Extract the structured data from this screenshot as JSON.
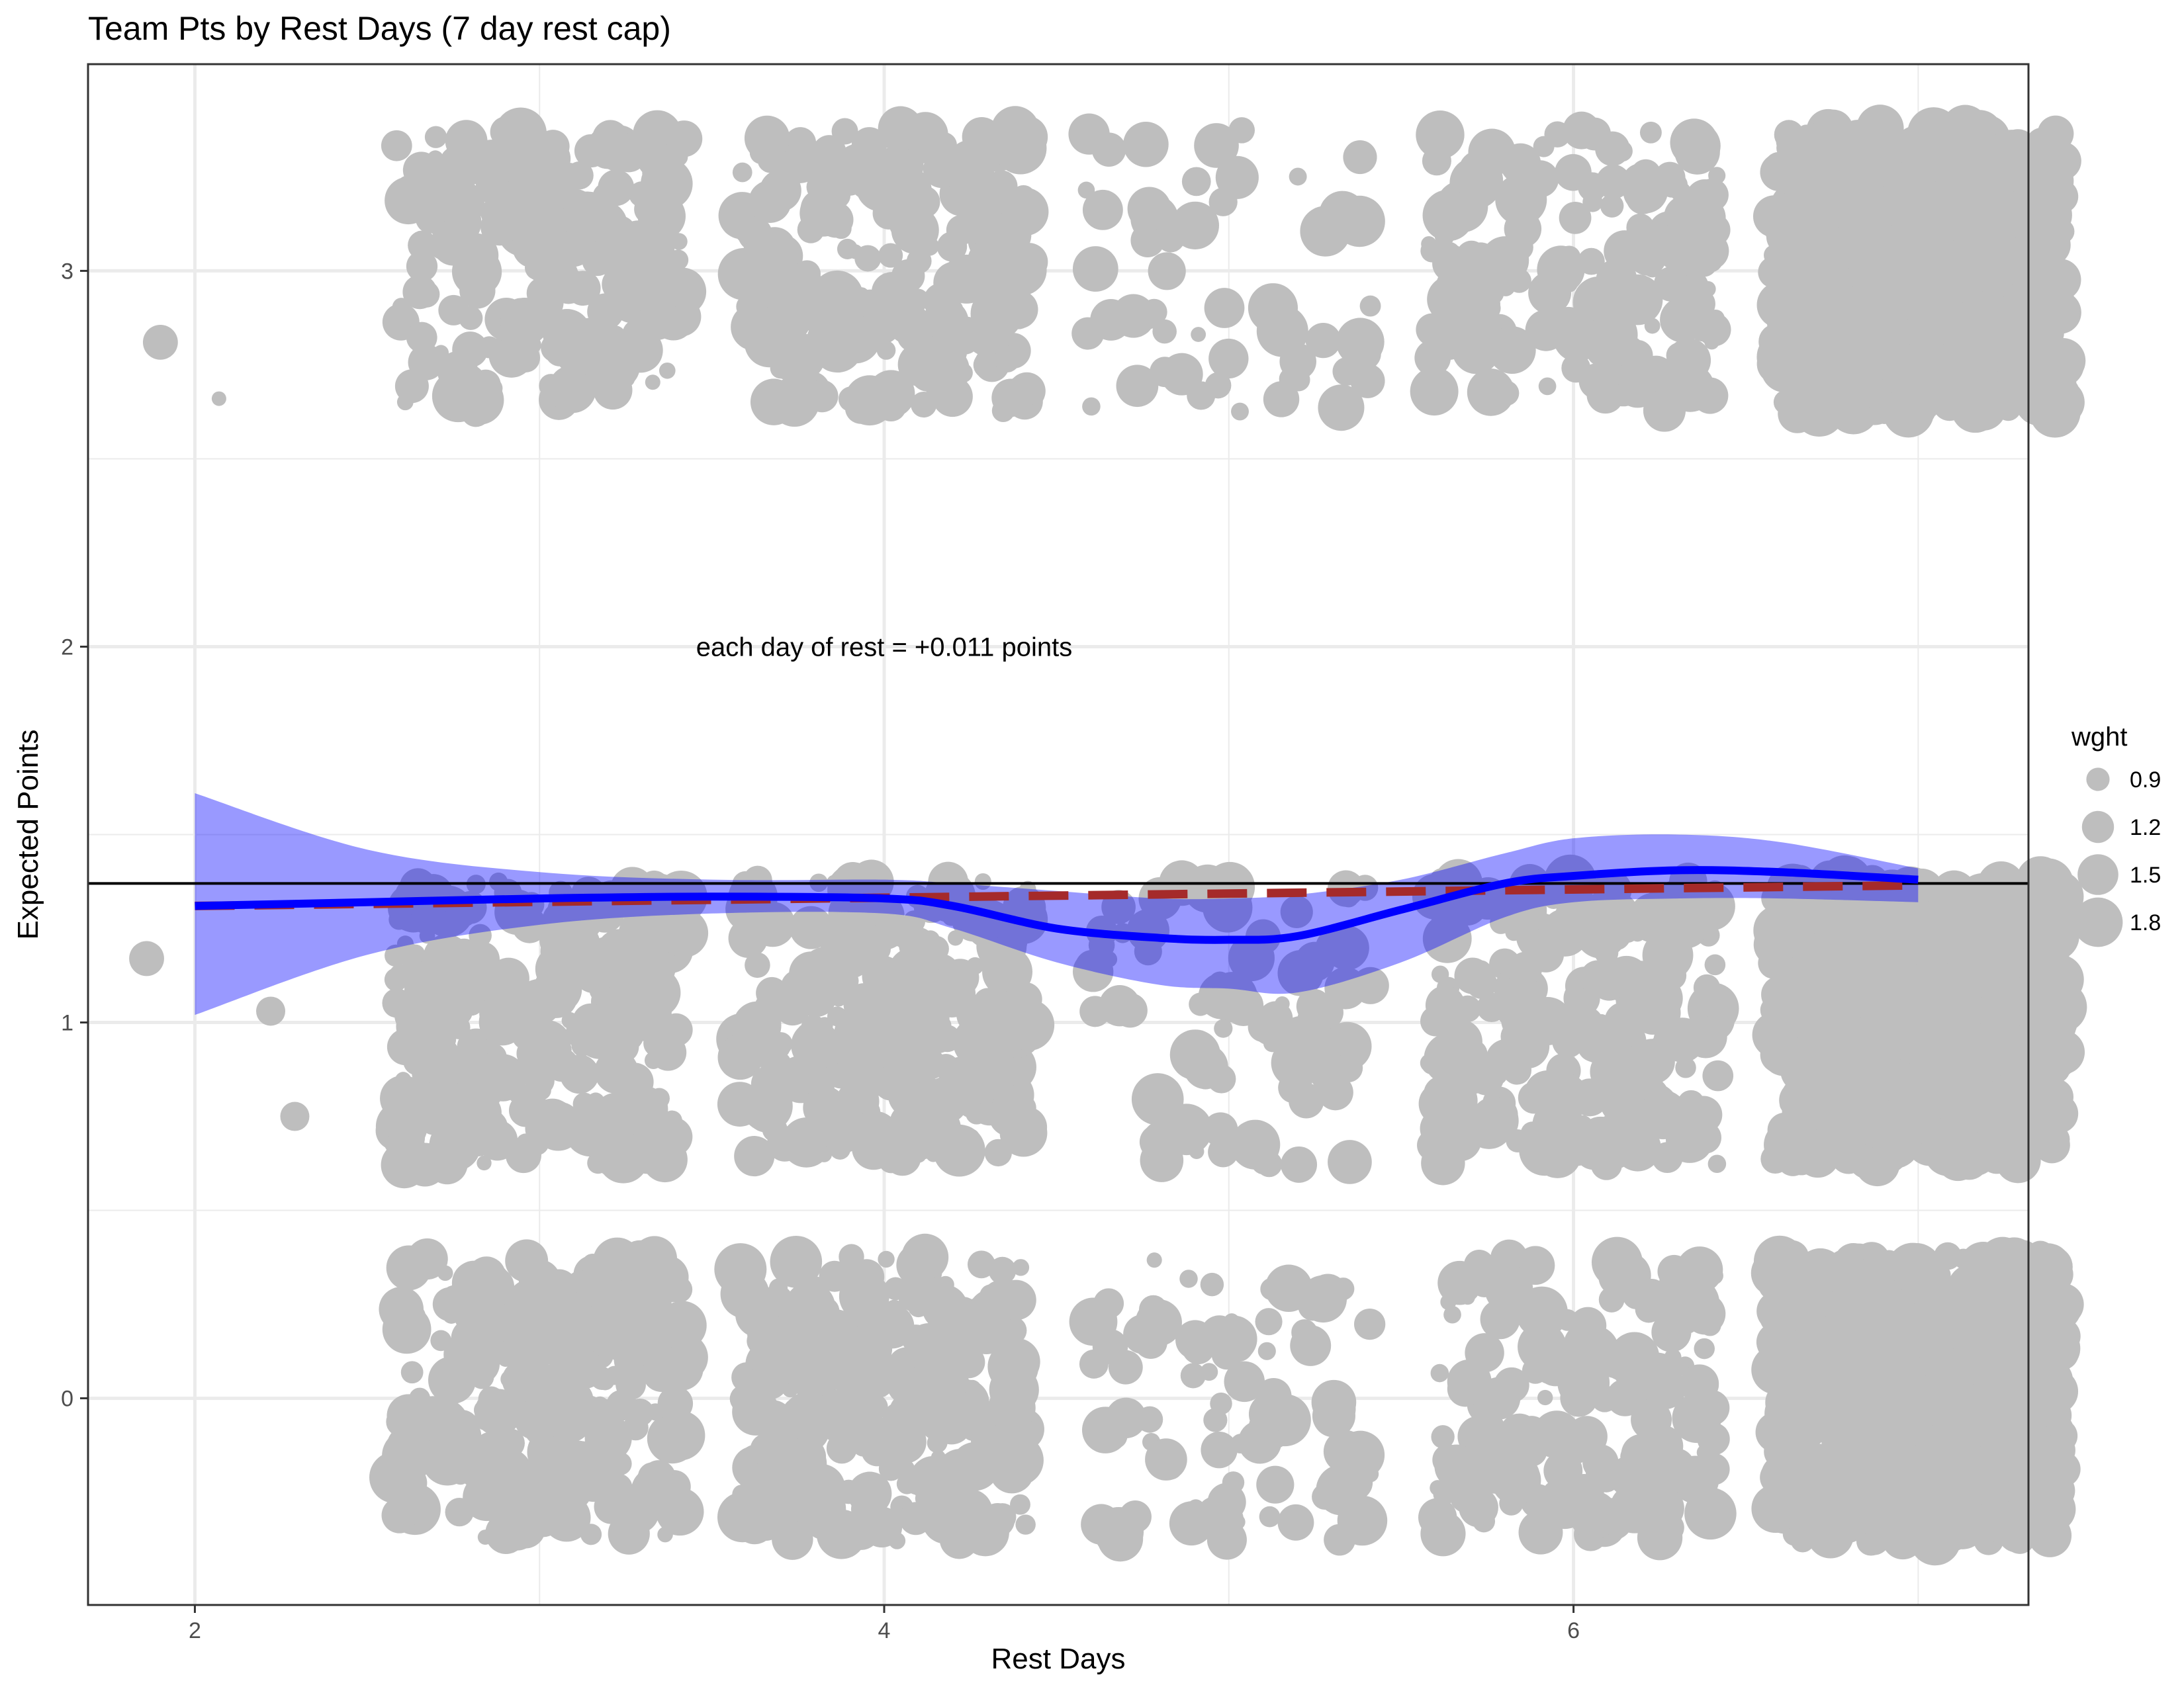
{
  "chart_data": {
    "type": "scatter",
    "title": "Team Pts by Rest Days (7 day rest cap)",
    "xlabel": "Rest Days",
    "ylabel": "Expected Points",
    "xlim": [
      1.69,
      7.32
    ],
    "ylim": [
      -0.55,
      3.55
    ],
    "x_ticks": [
      2,
      4,
      6
    ],
    "x_tick_labels": [
      "2",
      "4",
      "6"
    ],
    "x_minor_ticks": [
      3,
      5,
      7
    ],
    "y_ticks": [
      0,
      1,
      2,
      3
    ],
    "y_tick_labels": [
      "0",
      "1",
      "2",
      "3"
    ],
    "y_minor_ticks": [
      0.5,
      1.5,
      2.5
    ],
    "grid": true,
    "annotation": {
      "text": "each day of rest = +0.011 points",
      "x": 4,
      "y": 2
    },
    "legend": {
      "title": "wght",
      "position": "right",
      "entries": [
        {
          "label": "0.9",
          "value": 0.9
        },
        {
          "label": "1.2",
          "value": 1.2
        },
        {
          "label": "1.5",
          "value": 1.5
        },
        {
          "label": "1.8",
          "value": 1.8
        }
      ]
    },
    "point_color": "#bebebe",
    "outlier_points": [
      {
        "x": 1.9,
        "y": 2.81,
        "w": 1.3
      },
      {
        "x": 2.07,
        "y": 2.66,
        "w": 0.6
      },
      {
        "x": 1.86,
        "y": 1.17,
        "w": 1.3
      },
      {
        "x": 2.22,
        "y": 1.03,
        "w": 1.1
      },
      {
        "x": 2.29,
        "y": 0.75,
        "w": 1.1
      }
    ],
    "jitter_clusters": [
      {
        "x": 3,
        "y": 3,
        "count": 180,
        "jitter_x": 0.42,
        "jitter_y": 0.38
      },
      {
        "x": 3,
        "y": 1,
        "count": 240,
        "jitter_x": 0.42,
        "jitter_y": 0.38
      },
      {
        "x": 3,
        "y": 0,
        "count": 230,
        "jitter_x": 0.42,
        "jitter_y": 0.38
      },
      {
        "x": 4,
        "y": 3,
        "count": 190,
        "jitter_x": 0.42,
        "jitter_y": 0.38
      },
      {
        "x": 4,
        "y": 1,
        "count": 240,
        "jitter_x": 0.42,
        "jitter_y": 0.38
      },
      {
        "x": 4,
        "y": 0,
        "count": 230,
        "jitter_x": 0.42,
        "jitter_y": 0.38
      },
      {
        "x": 5,
        "y": 3,
        "count": 55,
        "jitter_x": 0.42,
        "jitter_y": 0.38
      },
      {
        "x": 5,
        "y": 1,
        "count": 75,
        "jitter_x": 0.42,
        "jitter_y": 0.38
      },
      {
        "x": 5,
        "y": 0,
        "count": 80,
        "jitter_x": 0.42,
        "jitter_y": 0.38
      },
      {
        "x": 6,
        "y": 3,
        "count": 150,
        "jitter_x": 0.42,
        "jitter_y": 0.38
      },
      {
        "x": 6,
        "y": 1,
        "count": 190,
        "jitter_x": 0.42,
        "jitter_y": 0.38
      },
      {
        "x": 6,
        "y": 0,
        "count": 150,
        "jitter_x": 0.42,
        "jitter_y": 0.38
      },
      {
        "x": 7,
        "y": 3,
        "count": 600,
        "jitter_x": 0.42,
        "jitter_y": 0.38
      },
      {
        "x": 7,
        "y": 1,
        "count": 650,
        "jitter_x": 0.42,
        "jitter_y": 0.38
      },
      {
        "x": 7,
        "y": 0,
        "count": 600,
        "jitter_x": 0.42,
        "jitter_y": 0.38
      }
    ],
    "horizontal_line": {
      "y": 1.37,
      "color": "#000000"
    },
    "series": [
      {
        "kind": "loess",
        "color": "#0000ff",
        "x": [
          2.0,
          2.5,
          3.0,
          3.5,
          4.0,
          4.2,
          4.5,
          4.8,
          5.0,
          5.2,
          5.5,
          5.8,
          6.0,
          6.3,
          6.6,
          7.0
        ],
        "y": [
          1.31,
          1.32,
          1.33,
          1.335,
          1.33,
          1.31,
          1.25,
          1.225,
          1.22,
          1.23,
          1.3,
          1.37,
          1.39,
          1.405,
          1.4,
          1.38
        ]
      },
      {
        "kind": "confidence_band",
        "color": "#0000ff",
        "x": [
          2.0,
          2.5,
          3.0,
          3.5,
          4.0,
          4.2,
          4.5,
          4.8,
          5.0,
          5.2,
          5.5,
          5.8,
          6.0,
          6.3,
          6.6,
          7.0
        ],
        "upper": [
          1.61,
          1.46,
          1.4,
          1.38,
          1.38,
          1.37,
          1.35,
          1.33,
          1.33,
          1.34,
          1.38,
          1.45,
          1.49,
          1.5,
          1.48,
          1.41
        ],
        "lower": [
          1.02,
          1.18,
          1.26,
          1.29,
          1.29,
          1.25,
          1.16,
          1.1,
          1.09,
          1.08,
          1.16,
          1.28,
          1.32,
          1.33,
          1.33,
          1.32
        ]
      },
      {
        "kind": "linear",
        "color": "#a52a2a",
        "x": [
          2.0,
          7.0
        ],
        "y": [
          1.31,
          1.365
        ]
      }
    ]
  }
}
